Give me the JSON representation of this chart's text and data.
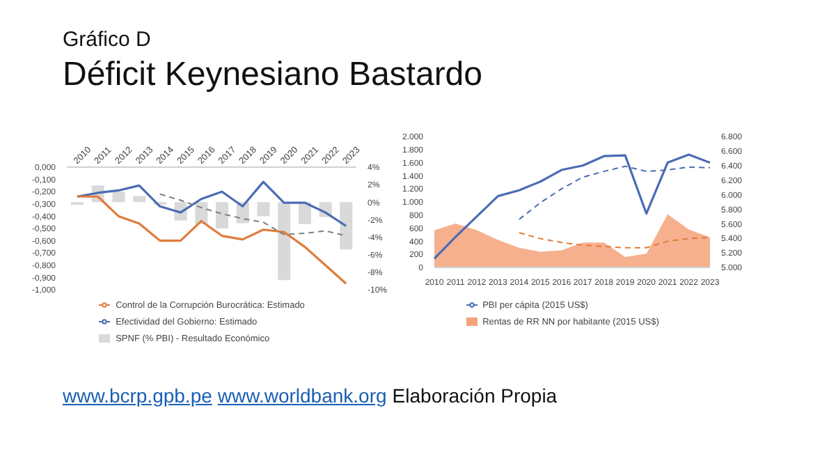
{
  "chart_data": [
    {
      "type": "bar",
      "title": "Gráfico D",
      "subtitle": "Déficit Keynesiano Bastardo",
      "annotations": [
        "www.bcrp.gpb.pe",
        "www.worldbank.org",
        "Elaboración Propia"
      ],
      "categories": [
        "2010",
        "2011",
        "2012",
        "2013",
        "2014",
        "2015",
        "2016",
        "2017",
        "2018",
        "2019",
        "2020",
        "2021",
        "2022",
        "2023"
      ],
      "series": [
        {
          "name": "SPNF (% PBI) - Resultado Económico",
          "color": "#d9d9d9",
          "axis": "y2",
          "values": [
            -0.3,
            1.9,
            1.2,
            0.7,
            -0.3,
            -2.1,
            -2.5,
            -3.0,
            -2.4,
            -1.6,
            -8.9,
            -2.5,
            -1.7,
            -5.4
          ]
        },
        {
          "type": "line",
          "name": "Efectividad del Gobierno: Estimado",
          "color": "#4a6cb3",
          "line_style": "solid",
          "values": [
            -0.24,
            -0.21,
            -0.19,
            -0.15,
            -0.32,
            -0.37,
            -0.26,
            -0.2,
            -0.32,
            -0.12,
            -0.29,
            -0.29,
            -0.37,
            -0.48
          ]
        },
        {
          "type": "line",
          "name": "Control de la Corrupción Burocrática: Estimado",
          "color": "#e07b3c",
          "line_style": "solid",
          "values": [
            -0.24,
            -0.24,
            -0.4,
            -0.46,
            -0.6,
            -0.6,
            -0.44,
            -0.56,
            -0.59,
            -0.51,
            -0.53,
            -0.65,
            -0.8,
            -0.95
          ]
        },
        {
          "type": "line",
          "color": "#7f7f7f",
          "line_style": "dashed",
          "values": [
            null,
            null,
            null,
            null,
            -0.22,
            -0.27,
            -0.33,
            -0.38,
            -0.42,
            -0.45,
            -0.55,
            -0.54,
            -0.52,
            -0.56
          ]
        }
      ],
      "ylim": [
        -1,
        0
      ],
      "yticks": [
        {
          "value": 0,
          "label": "0,000"
        },
        {
          "value": -0.1,
          "label": "-0,100"
        },
        {
          "value": -0.2,
          "label": "-0,200"
        },
        {
          "value": -0.3,
          "label": "-0,300"
        },
        {
          "value": -0.4,
          "label": "-0,400"
        },
        {
          "value": -0.5,
          "label": "-0,500"
        },
        {
          "value": -0.6,
          "label": "-0,600"
        },
        {
          "value": -0.7,
          "label": "-0,700"
        },
        {
          "value": -0.8,
          "label": "-0,800"
        },
        {
          "value": -0.9,
          "label": "-0,900"
        },
        {
          "value": -1,
          "label": "-1,000"
        }
      ],
      "y2lim": [
        -10,
        4
      ],
      "y2ticks": [
        {
          "value": 4,
          "label": "4%"
        },
        {
          "value": 2,
          "label": "2%"
        },
        {
          "value": 0,
          "label": "0%"
        },
        {
          "value": -2,
          "label": "-2%"
        },
        {
          "value": -4,
          "label": "-4%"
        },
        {
          "value": -6,
          "label": "-6%"
        },
        {
          "value": -8,
          "label": "-8%"
        },
        {
          "value": -10,
          "label": "-10%"
        }
      ],
      "legend": "bottom"
    },
    {
      "type": "area",
      "categories": [
        "2010",
        "2011",
        "2012",
        "2013",
        "2014",
        "2015",
        "2016",
        "2017",
        "2018",
        "2019",
        "2020",
        "2021",
        "2022",
        "2023"
      ],
      "series": [
        {
          "name": "Rentas de RR NN por habitante (2015 US$)",
          "color": "#f4a27a",
          "values": [
            570,
            670,
            570,
            420,
            300,
            240,
            260,
            380,
            380,
            160,
            210,
            810,
            580,
            460
          ]
        },
        {
          "type": "line",
          "name": "PBI per cápita (2015 US$)",
          "color": "#4a6cb3",
          "line_style": "solid",
          "axis": "y2",
          "values": [
            5120,
            5420,
            5700,
            5980,
            6060,
            6180,
            6340,
            6400,
            6530,
            6540,
            5740,
            6440,
            6550,
            6440
          ]
        },
        {
          "type": "line",
          "color": "#4a6cb3",
          "line_style": "dashed",
          "axis": "y2",
          "values": [
            null,
            null,
            null,
            null,
            5660,
            5890,
            6080,
            6240,
            6320,
            6390,
            6320,
            6340,
            6380,
            6370
          ]
        },
        {
          "type": "line",
          "color": "#e07b3c",
          "line_style": "dashed",
          "values": [
            null,
            null,
            null,
            null,
            530,
            440,
            380,
            340,
            320,
            300,
            300,
            400,
            440,
            460
          ]
        }
      ],
      "ylim": [
        0,
        2000
      ],
      "yticks": [
        0,
        {
          "value": 200,
          "label": "200"
        },
        {
          "value": 400,
          "label": "400"
        },
        {
          "value": 600,
          "label": "600"
        },
        {
          "value": 800,
          "label": "800"
        },
        {
          "value": 1000,
          "label": "1.000"
        },
        {
          "value": 1200,
          "label": "1.200"
        },
        {
          "value": 1400,
          "label": "1.400"
        },
        {
          "value": 1600,
          "label": "1.600"
        },
        {
          "value": 1800,
          "label": "1.800"
        },
        {
          "value": 2000,
          "label": "2.000"
        }
      ],
      "y2lim": [
        5000,
        6800
      ],
      "y2ticks": [
        {
          "value": 5000,
          "label": "5.000"
        },
        {
          "value": 5200,
          "label": "5.200"
        },
        {
          "value": 5400,
          "label": "5.400"
        },
        {
          "value": 5600,
          "label": "5.600"
        },
        {
          "value": 5800,
          "label": "5.800"
        },
        {
          "value": 6000,
          "label": "6.000"
        },
        {
          "value": 6200,
          "label": "6.200"
        },
        {
          "value": 6400,
          "label": "6.400"
        },
        {
          "value": 6600,
          "label": "6.600"
        },
        {
          "value": 6800,
          "label": "6.800"
        }
      ],
      "legend": "bottom"
    }
  ]
}
